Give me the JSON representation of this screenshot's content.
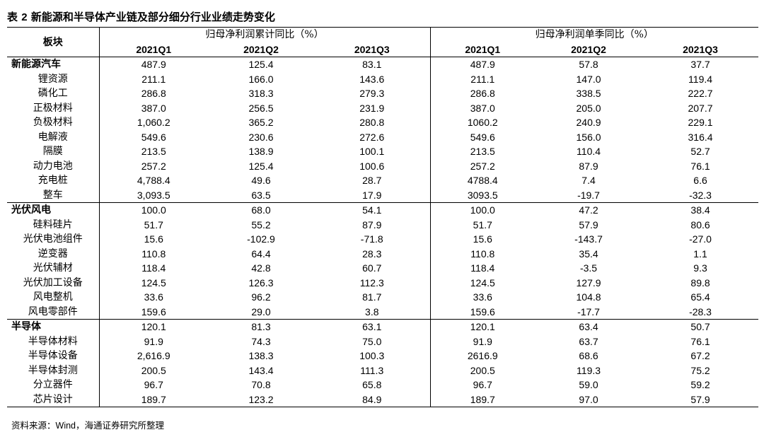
{
  "title": {
    "prefix": "表",
    "number": "2",
    "text": "新能源和半导体产业链及部分细分行业业绩走势变化"
  },
  "header": {
    "block_label": "板块",
    "group1": "归母净利润累计同比（%）",
    "group2": "归母净利润单季同比（%）",
    "group1_cols": [
      "2021Q1",
      "2021Q2",
      "2021Q3"
    ],
    "group2_cols": [
      "2021Q1",
      "2021Q2",
      "2021Q3"
    ]
  },
  "rows": [
    {
      "name": "新能源汽车",
      "main": true,
      "vals": [
        "487.9",
        "125.4",
        "83.1",
        "487.9",
        "57.8",
        "37.7"
      ]
    },
    {
      "name": "锂资源",
      "main": false,
      "vals": [
        "211.1",
        "166.0",
        "143.6",
        "211.1",
        "147.0",
        "119.4"
      ]
    },
    {
      "name": "磷化工",
      "main": false,
      "vals": [
        "286.8",
        "318.3",
        "279.3",
        "286.8",
        "338.5",
        "222.7"
      ]
    },
    {
      "name": "正极材料",
      "main": false,
      "vals": [
        "387.0",
        "256.5",
        "231.9",
        "387.0",
        "205.0",
        "207.7"
      ]
    },
    {
      "name": "负极材料",
      "main": false,
      "vals": [
        "1,060.2",
        "365.2",
        "280.8",
        "1060.2",
        "240.9",
        "229.1"
      ]
    },
    {
      "name": "电解液",
      "main": false,
      "vals": [
        "549.6",
        "230.6",
        "272.6",
        "549.6",
        "156.0",
        "316.4"
      ]
    },
    {
      "name": "隔膜",
      "main": false,
      "vals": [
        "213.5",
        "138.9",
        "100.1",
        "213.5",
        "110.4",
        "52.7"
      ]
    },
    {
      "name": "动力电池",
      "main": false,
      "vals": [
        "257.2",
        "125.4",
        "100.6",
        "257.2",
        "87.9",
        "76.1"
      ]
    },
    {
      "name": "充电桩",
      "main": false,
      "vals": [
        "4,788.4",
        "49.6",
        "28.7",
        "4788.4",
        "7.4",
        "6.6"
      ]
    },
    {
      "name": "整车",
      "main": false,
      "vals": [
        "3,093.5",
        "63.5",
        "17.9",
        "3093.5",
        "-19.7",
        "-32.3"
      ]
    },
    {
      "name": "光伏风电",
      "main": true,
      "vals": [
        "100.0",
        "68.0",
        "54.1",
        "100.0",
        "47.2",
        "38.4"
      ]
    },
    {
      "name": "硅料硅片",
      "main": false,
      "vals": [
        "51.7",
        "55.2",
        "87.9",
        "51.7",
        "57.9",
        "80.6"
      ]
    },
    {
      "name": "光伏电池组件",
      "main": false,
      "vals": [
        "15.6",
        "-102.9",
        "-71.8",
        "15.6",
        "-143.7",
        "-27.0"
      ]
    },
    {
      "name": "逆变器",
      "main": false,
      "vals": [
        "110.8",
        "64.4",
        "28.3",
        "110.8",
        "35.4",
        "1.1"
      ]
    },
    {
      "name": "光伏辅材",
      "main": false,
      "vals": [
        "118.4",
        "42.8",
        "60.7",
        "118.4",
        "-3.5",
        "9.3"
      ]
    },
    {
      "name": "光伏加工设备",
      "main": false,
      "vals": [
        "124.5",
        "126.3",
        "112.3",
        "124.5",
        "127.9",
        "89.8"
      ]
    },
    {
      "name": "风电整机",
      "main": false,
      "vals": [
        "33.6",
        "96.2",
        "81.7",
        "33.6",
        "104.8",
        "65.4"
      ]
    },
    {
      "name": "风电零部件",
      "main": false,
      "vals": [
        "159.6",
        "29.0",
        "3.8",
        "159.6",
        "-17.7",
        "-28.3"
      ]
    },
    {
      "name": "半导体",
      "main": true,
      "vals": [
        "120.1",
        "81.3",
        "63.1",
        "120.1",
        "63.4",
        "50.7"
      ]
    },
    {
      "name": "半导体材料",
      "main": false,
      "vals": [
        "91.9",
        "74.3",
        "75.0",
        "91.9",
        "63.7",
        "76.1"
      ]
    },
    {
      "name": "半导体设备",
      "main": false,
      "vals": [
        "2,616.9",
        "138.3",
        "100.3",
        "2616.9",
        "68.6",
        "67.2"
      ]
    },
    {
      "name": "半导体封测",
      "main": false,
      "vals": [
        "200.5",
        "143.4",
        "111.3",
        "200.5",
        "119.3",
        "75.2"
      ]
    },
    {
      "name": "分立器件",
      "main": false,
      "vals": [
        "96.7",
        "70.8",
        "65.8",
        "96.7",
        "59.0",
        "59.2"
      ]
    },
    {
      "name": "芯片设计",
      "main": false,
      "vals": [
        "189.7",
        "123.2",
        "84.9",
        "189.7",
        "97.0",
        "57.9"
      ]
    }
  ],
  "source": {
    "label": "资料来源：",
    "src1": "Wind",
    "sep": "，",
    "src2": "海通证券研究所整理"
  }
}
